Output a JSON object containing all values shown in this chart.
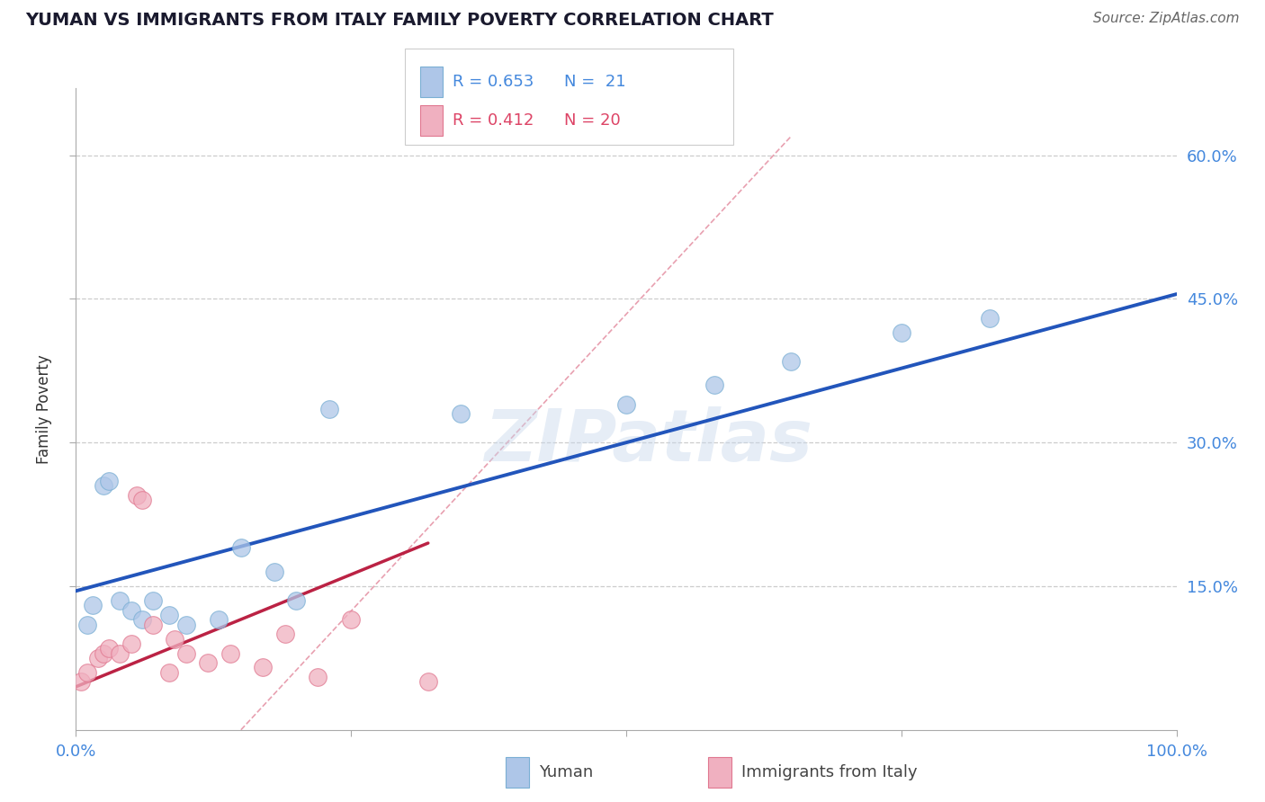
{
  "title": "YUMAN VS IMMIGRANTS FROM ITALY FAMILY POVERTY CORRELATION CHART",
  "source": "Source: ZipAtlas.com",
  "ylabel": "Family Poverty",
  "xlim": [
    0,
    100
  ],
  "ylim": [
    0,
    67
  ],
  "ytick_labels": [
    "15.0%",
    "30.0%",
    "45.0%",
    "60.0%"
  ],
  "ytick_vals": [
    15,
    30,
    45,
    60
  ],
  "background_color": "#ffffff",
  "grid_color": "#cccccc",
  "blue_scatter_color": "#aec6e8",
  "blue_scatter_edge": "#7aafd4",
  "pink_scatter_color": "#f0b0c0",
  "pink_scatter_edge": "#e07890",
  "blue_line_color": "#2255bb",
  "pink_line_color": "#bb2244",
  "diag_line_color": "#e8a0b0",
  "legend_R1": "R = 0.653",
  "legend_N1": "N =  21",
  "legend_R2": "R = 0.412",
  "legend_N2": "N = 20",
  "legend_color1": "#4488dd",
  "legend_color2": "#dd4466",
  "watermark": "ZIPatlas",
  "blue_x": [
    1.0,
    1.5,
    2.5,
    3.0,
    4.0,
    5.0,
    6.0,
    7.0,
    8.5,
    10.0,
    13.0,
    15.0,
    18.0,
    20.0,
    23.0,
    35.0,
    50.0,
    58.0,
    65.0,
    75.0,
    83.0
  ],
  "blue_y": [
    11.0,
    13.0,
    25.5,
    26.0,
    13.5,
    12.5,
    11.5,
    13.5,
    12.0,
    11.0,
    11.5,
    19.0,
    16.5,
    13.5,
    33.5,
    33.0,
    34.0,
    36.0,
    38.5,
    41.5,
    43.0
  ],
  "pink_x": [
    0.5,
    1.0,
    2.0,
    2.5,
    3.0,
    4.0,
    5.0,
    5.5,
    6.0,
    7.0,
    8.5,
    9.0,
    10.0,
    12.0,
    14.0,
    17.0,
    19.0,
    22.0,
    25.0,
    32.0
  ],
  "pink_y": [
    5.0,
    6.0,
    7.5,
    8.0,
    8.5,
    8.0,
    9.0,
    24.5,
    24.0,
    11.0,
    6.0,
    9.5,
    8.0,
    7.0,
    8.0,
    6.5,
    10.0,
    5.5,
    11.5,
    5.0
  ],
  "blue_line_x": [
    0,
    100
  ],
  "blue_line_y": [
    14.5,
    45.5
  ],
  "pink_line_x": [
    0,
    32
  ],
  "pink_line_y": [
    4.5,
    19.5
  ],
  "diag_line_x": [
    15,
    65
  ],
  "diag_line_y": [
    0,
    62
  ]
}
